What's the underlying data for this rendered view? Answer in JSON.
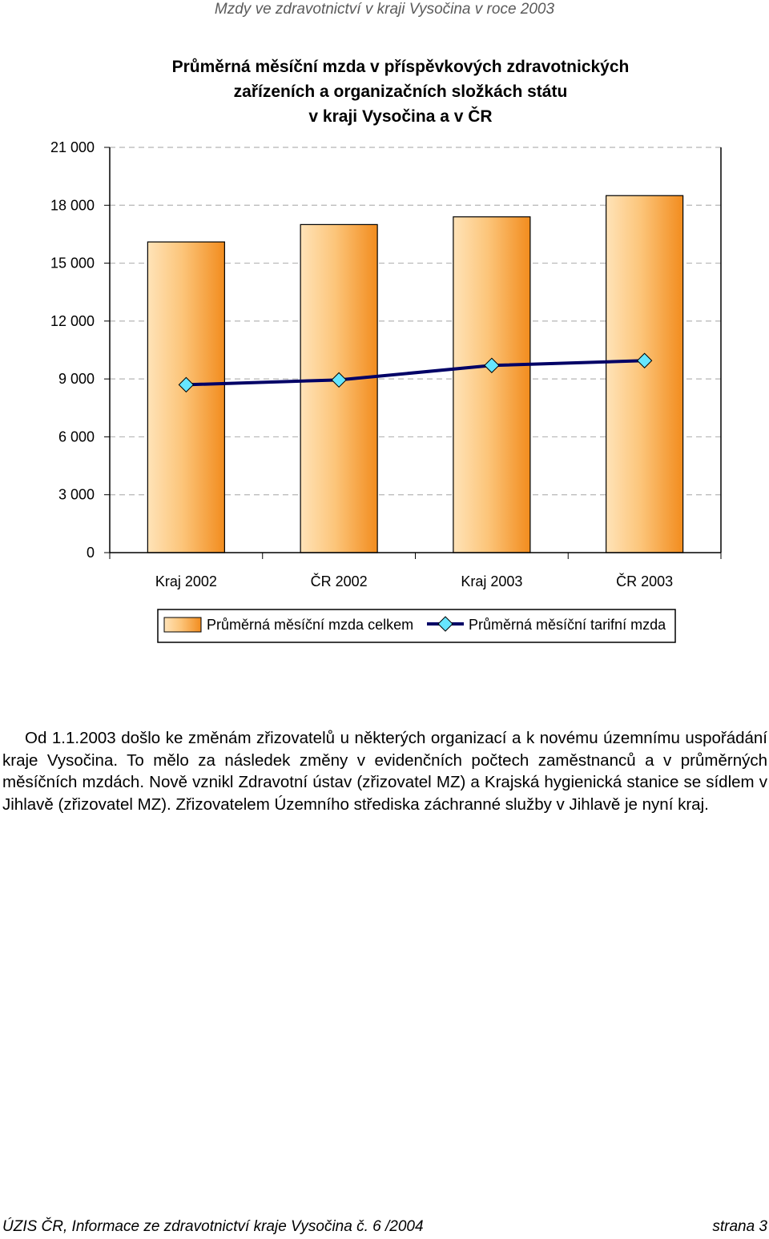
{
  "header": {
    "text": "Mzdy ve zdravotnictví v kraji Vysočina v roce 2003"
  },
  "chart_data": {
    "type": "bar",
    "title": [
      "Průměrná měsíční mzda v příspěvkových zdravotnických",
      "zařízeních a organizačních složkách státu",
      "v kraji Vysočina a v ČR"
    ],
    "categories": [
      "Kraj 2002",
      "ČR 2002",
      "Kraj 2003",
      "ČR 2003"
    ],
    "y_ticks": [
      {
        "value": 0,
        "label": "0"
      },
      {
        "value": 3000,
        "label": "3 000"
      },
      {
        "value": 6000,
        "label": "6 000"
      },
      {
        "value": 9000,
        "label": "9 000"
      },
      {
        "value": 12000,
        "label": "12 000"
      },
      {
        "value": 15000,
        "label": "15 000"
      },
      {
        "value": 18000,
        "label": "18 000"
      },
      {
        "value": 21000,
        "label": "21 000"
      }
    ],
    "ylim": [
      0,
      21000
    ],
    "grid": true,
    "legend_placement": "bottom",
    "series": [
      {
        "name": "Průměrná měsíční mzda celkem",
        "type": "bar",
        "values": [
          16100,
          17000,
          17400,
          18500
        ],
        "color": "#f7941d"
      },
      {
        "name": "Průměrná měsíční tarifní mzda",
        "type": "line",
        "values": [
          8700,
          8950,
          9700,
          9950
        ],
        "color": "#000066",
        "marker_color": "#66e6ff"
      }
    ]
  },
  "paragraph": "Od 1.1.2003 došlo ke změnám zřizovatelů u některých organizací a k novému územnímu uspořádání kraje Vysočina. To mělo za následek změny v evidenčních počtech zaměstnanců a v průměrných měsíčních mzdách. Nově vznikl Zdravotní ústav (zřizovatel MZ) a Krajská hygienická stanice se sídlem v Jihlavě (zřizovatel MZ). Zřizovatelem Územního střediska záchranné služby v Jihlavě je nyní kraj.",
  "footer": {
    "left": "ÚZIS ČR, Informace ze zdravotnictví kraje Vysočina č. 6 /2004",
    "right": "strana 3"
  }
}
